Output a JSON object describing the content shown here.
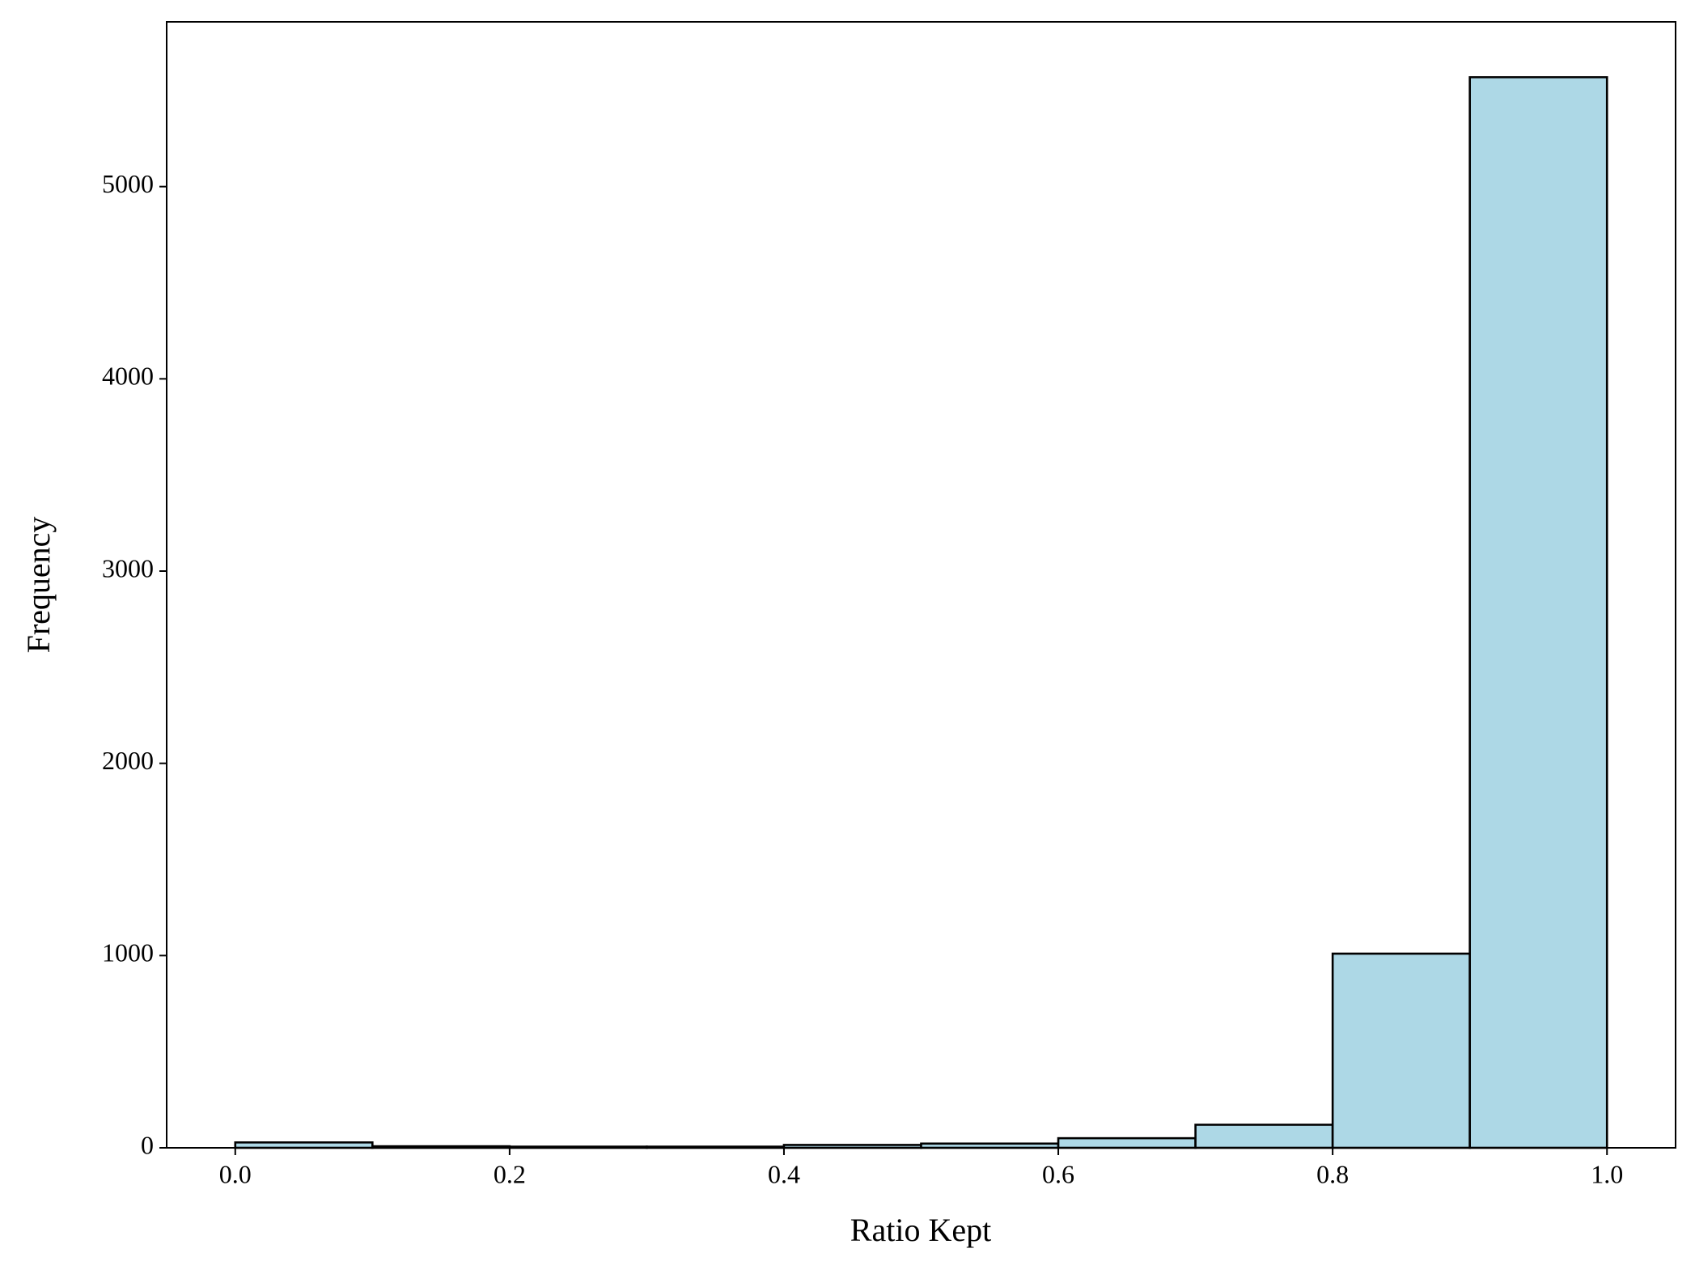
{
  "chart_data": {
    "type": "histogram",
    "x_label": "Ratio Kept",
    "y_label": "Frequency",
    "bins": [
      0.0,
      0.1,
      0.2,
      0.3,
      0.4,
      0.5,
      0.6,
      0.7,
      0.8,
      0.9,
      1.0
    ],
    "values": [
      28,
      8,
      6,
      6,
      15,
      22,
      50,
      120,
      1010,
      5569
    ],
    "color": "#add8e6",
    "edgecolor": "#000000",
    "xlim": [
      -0.05,
      1.05
    ],
    "ylim": [
      0,
      5857
    ],
    "xticks": [
      {
        "value": 0.0,
        "label": "0.0"
      },
      {
        "value": 0.2,
        "label": "0.2"
      },
      {
        "value": 0.4,
        "label": "0.4"
      },
      {
        "value": 0.6,
        "label": "0.6"
      },
      {
        "value": 0.8,
        "label": "0.8"
      },
      {
        "value": 1.0,
        "label": "1.0"
      }
    ],
    "yticks": [
      0,
      1000,
      2000,
      3000,
      4000,
      5000
    ],
    "grid": false
  }
}
